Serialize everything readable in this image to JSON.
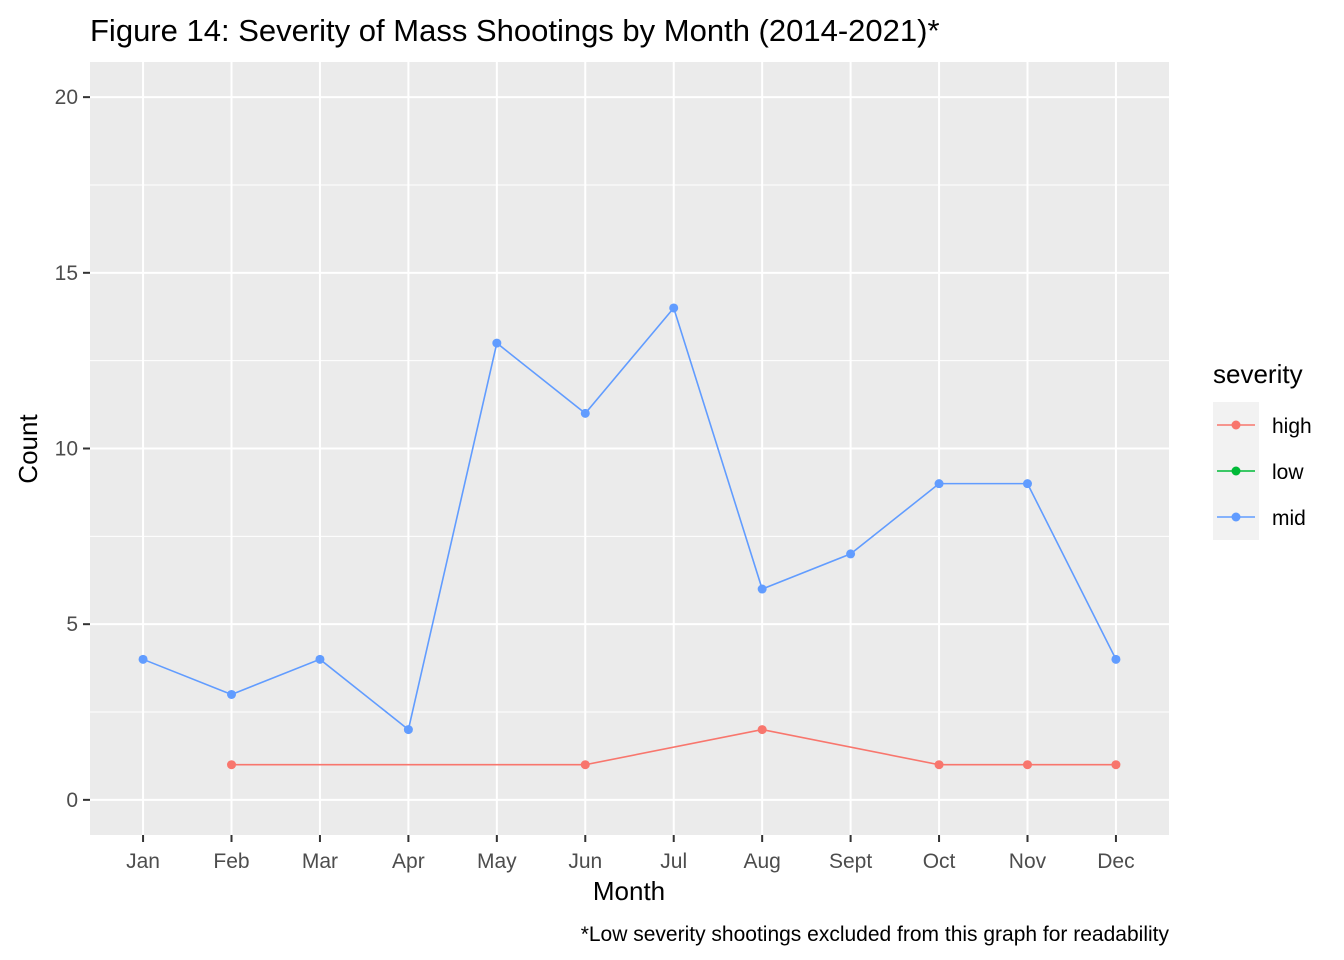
{
  "chart_data": {
    "type": "line",
    "title": "Figure 14: Severity of Mass Shootings by Month (2014-2021)*",
    "xlabel": "Month",
    "ylabel": "Count",
    "caption": "*Low severity shootings excluded from this graph for readability",
    "categories": [
      "Jan",
      "Feb",
      "Mar",
      "Apr",
      "May",
      "Jun",
      "Jul",
      "Aug",
      "Sept",
      "Oct",
      "Nov",
      "Dec"
    ],
    "ylim": [
      -1,
      21
    ],
    "yticks": [
      0,
      5,
      10,
      15,
      20
    ],
    "grid": true,
    "legend": {
      "title": "severity",
      "placement": "right",
      "entries": [
        "high",
        "low",
        "mid"
      ]
    },
    "series": [
      {
        "name": "high",
        "color": "#F8766D",
        "values": [
          null,
          1,
          null,
          null,
          null,
          1,
          null,
          2,
          null,
          1,
          1,
          1
        ]
      },
      {
        "name": "low",
        "color": "#00BA38",
        "values": [
          null,
          null,
          null,
          null,
          null,
          null,
          null,
          null,
          null,
          null,
          null,
          null
        ]
      },
      {
        "name": "mid",
        "color": "#619CFF",
        "values": [
          4,
          3,
          4,
          2,
          13,
          11,
          14,
          6,
          7,
          9,
          9,
          4
        ]
      }
    ]
  }
}
